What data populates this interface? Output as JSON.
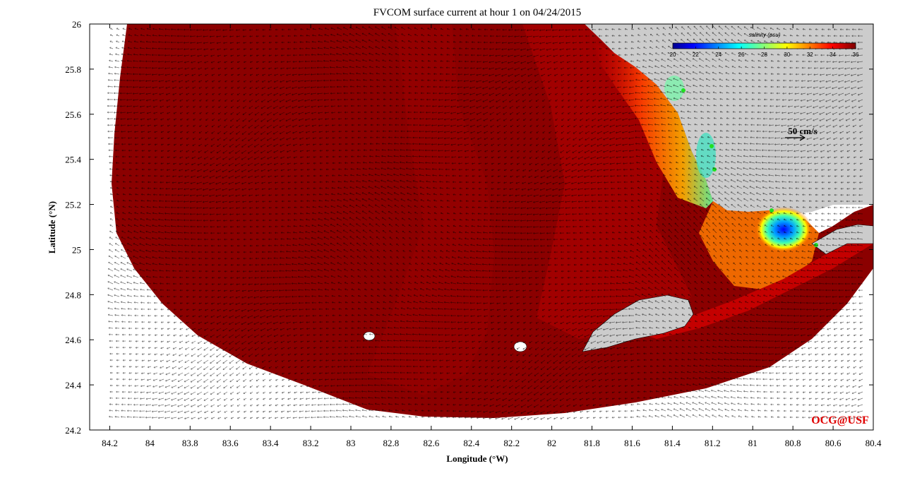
{
  "title": "FVCOM surface current at hour 1 on 04/24/2015",
  "credit": "OCG@USF",
  "x_axis": {
    "label": "Longitude (°W)",
    "ticks": [
      "84.2",
      "84",
      "83.8",
      "83.6",
      "83.4",
      "83.2",
      "83",
      "82.8",
      "82.6",
      "82.4",
      "82.2",
      "82",
      "81.8",
      "81.6",
      "81.4",
      "81.2",
      "81",
      "80.8",
      "80.6",
      "80.4"
    ],
    "range": [
      84.3,
      80.4
    ]
  },
  "y_axis": {
    "label": "Latitude (°N)",
    "ticks": [
      "24.2",
      "24.4",
      "24.6",
      "24.8",
      "25",
      "25.2",
      "25.4",
      "25.6",
      "25.8",
      "26"
    ],
    "range": [
      24.2,
      26.0
    ]
  },
  "colorbar": {
    "title": "salinity (psu)",
    "ticks": [
      "20",
      "22",
      "24",
      "26",
      "28",
      "30",
      "32",
      "34",
      "36"
    ],
    "range": [
      20,
      36
    ],
    "colormap": "jet"
  },
  "vector_scale": {
    "label": "50 cm/s",
    "value": 50,
    "units": "cm/s"
  },
  "colors": {
    "ocean_high_salinity": "#8b0000",
    "ocean_mid": "#c40000",
    "land": "#cccccc",
    "arrows": "#000000",
    "credit": "#e00000"
  }
}
